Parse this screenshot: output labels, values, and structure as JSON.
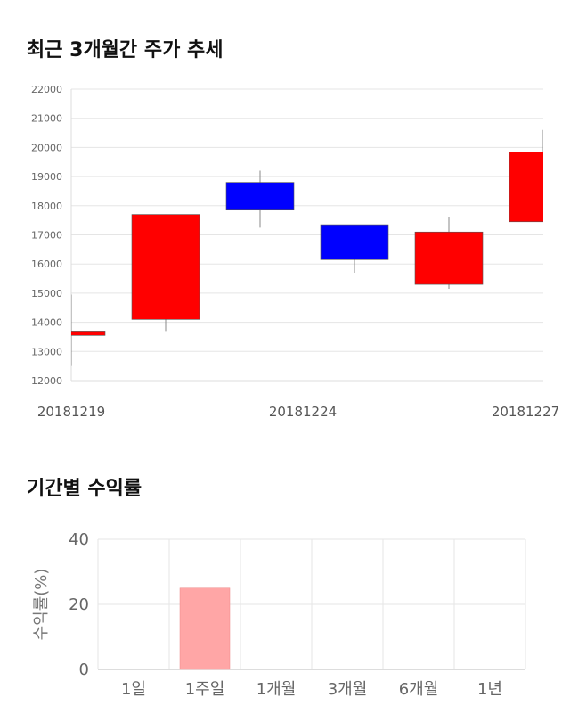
{
  "titles": {
    "candle": "최근 3개월간 주가 추세",
    "returns": "기간별 수익률"
  },
  "colors": {
    "up": "#ff0000",
    "down": "#0000ff",
    "return_bar": "#ffa6a6",
    "grid": "#e5e5e5"
  },
  "chart_data": [
    {
      "type": "candlestick",
      "title": "최근 3개월간 주가 추세",
      "ylim": [
        12000,
        22000
      ],
      "yticks": [
        12000,
        13000,
        14000,
        15000,
        16000,
        17000,
        18000,
        19000,
        20000,
        21000,
        22000
      ],
      "xtick_labels": [
        "20181219",
        "20181224",
        "20181227"
      ],
      "candles": [
        {
          "open": 13550,
          "close": 13700,
          "high": 14950,
          "low": 12500
        },
        {
          "open": 14100,
          "close": 17700,
          "high": 17700,
          "low": 13700
        },
        {
          "open": 18800,
          "close": 17850,
          "high": 19200,
          "low": 17250
        },
        {
          "open": 17350,
          "close": 16150,
          "high": 17350,
          "low": 15700
        },
        {
          "open": 15300,
          "close": 17100,
          "high": 17600,
          "low": 15150
        },
        {
          "open": 17450,
          "close": 19850,
          "high": 20600,
          "low": 17450
        }
      ],
      "grid": true
    },
    {
      "type": "bar",
      "title": "기간별 수익률",
      "ylabel": "수익률(%)",
      "categories": [
        "1일",
        "1주일",
        "1개월",
        "3개월",
        "6개월",
        "1년"
      ],
      "values": [
        0,
        25,
        0,
        0,
        0,
        0
      ],
      "ylim": [
        0,
        40
      ],
      "yticks": [
        0,
        20,
        40
      ],
      "grid": true
    }
  ]
}
